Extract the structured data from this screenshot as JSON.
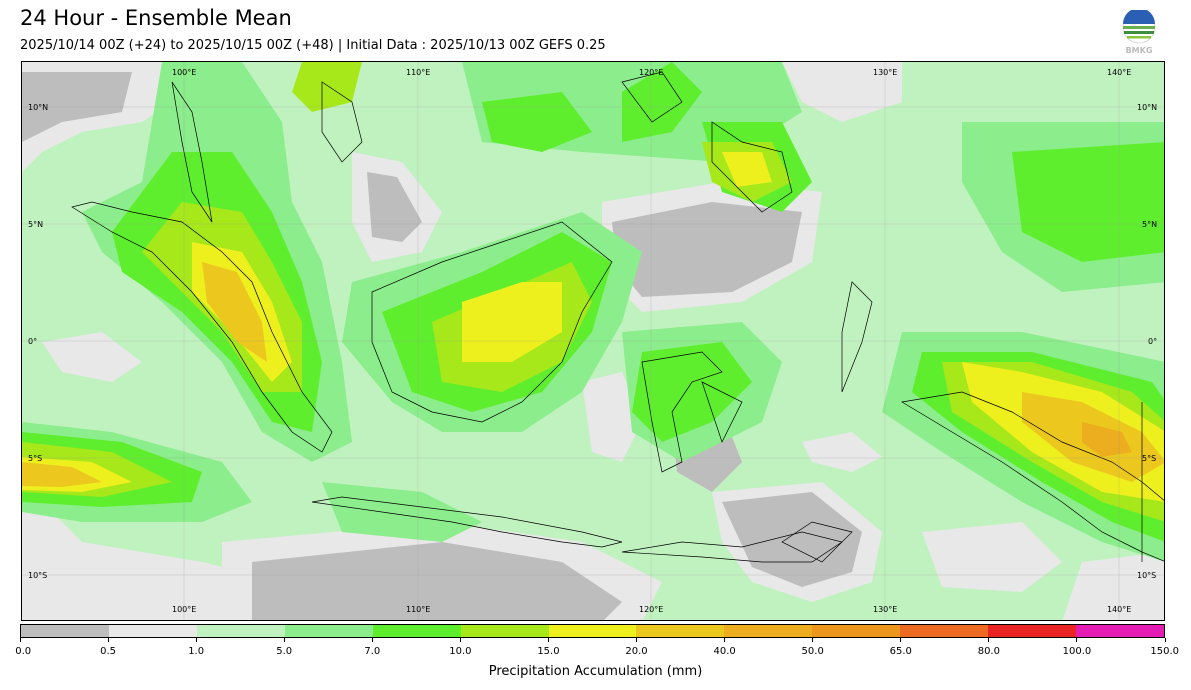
{
  "header": {
    "title": "24 Hour - Ensemble Mean",
    "subtitle": "2025/10/14 00Z (+24) to 2025/10/15 00Z (+48) | Initial Data : 2025/10/13 00Z GEFS 0.25",
    "logo_text": "BMKG"
  },
  "map": {
    "lon_labels": [
      "100°E",
      "110°E",
      "120°E",
      "130°E",
      "140°E"
    ],
    "lat_labels": [
      "10°N",
      "5°N",
      "0°",
      "5°S",
      "10°S"
    ]
  },
  "colorbar": {
    "label": "Precipitation Accumulation (mm)",
    "ticks": [
      "0.0",
      "0.5",
      "1.0",
      "5.0",
      "7.0",
      "10.0",
      "15.0",
      "20.0",
      "40.0",
      "50.0",
      "65.0",
      "80.0",
      "100.0",
      "150.0"
    ],
    "colors": [
      "#bdbdbd",
      "#e8e8e8",
      "#c0f2c0",
      "#8bed8b",
      "#5fee2e",
      "#a6e81a",
      "#eef01e",
      "#ecc81e",
      "#ecad1e",
      "#ec961e",
      "#ec6a22",
      "#ea2424",
      "#e41cb4"
    ]
  }
}
